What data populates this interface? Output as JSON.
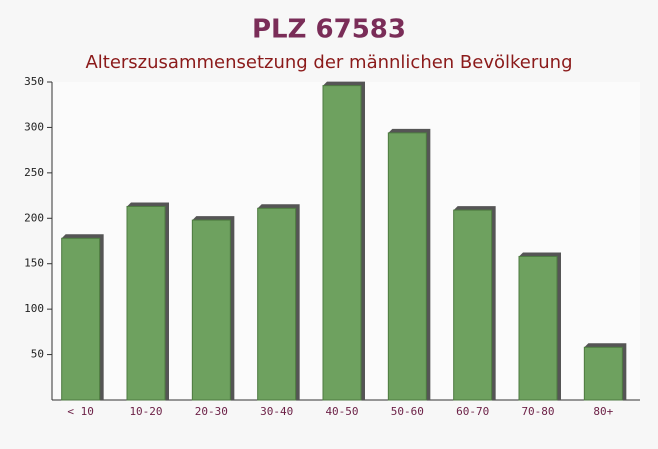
{
  "chart_data": {
    "type": "bar",
    "title": "PLZ 67583",
    "subtitle": "Alterszusammensetzung der männlichen Bevölkerung",
    "categories": [
      "< 10",
      "10-20",
      "20-30",
      "30-40",
      "40-50",
      "50-60",
      "60-70",
      "70-80",
      "80+"
    ],
    "values": [
      178,
      213,
      198,
      211,
      346,
      294,
      209,
      158,
      58
    ],
    "color": "#6ea15f",
    "ylim": [
      0,
      350
    ],
    "yticks": [
      50,
      100,
      150,
      200,
      250,
      300,
      350
    ]
  }
}
